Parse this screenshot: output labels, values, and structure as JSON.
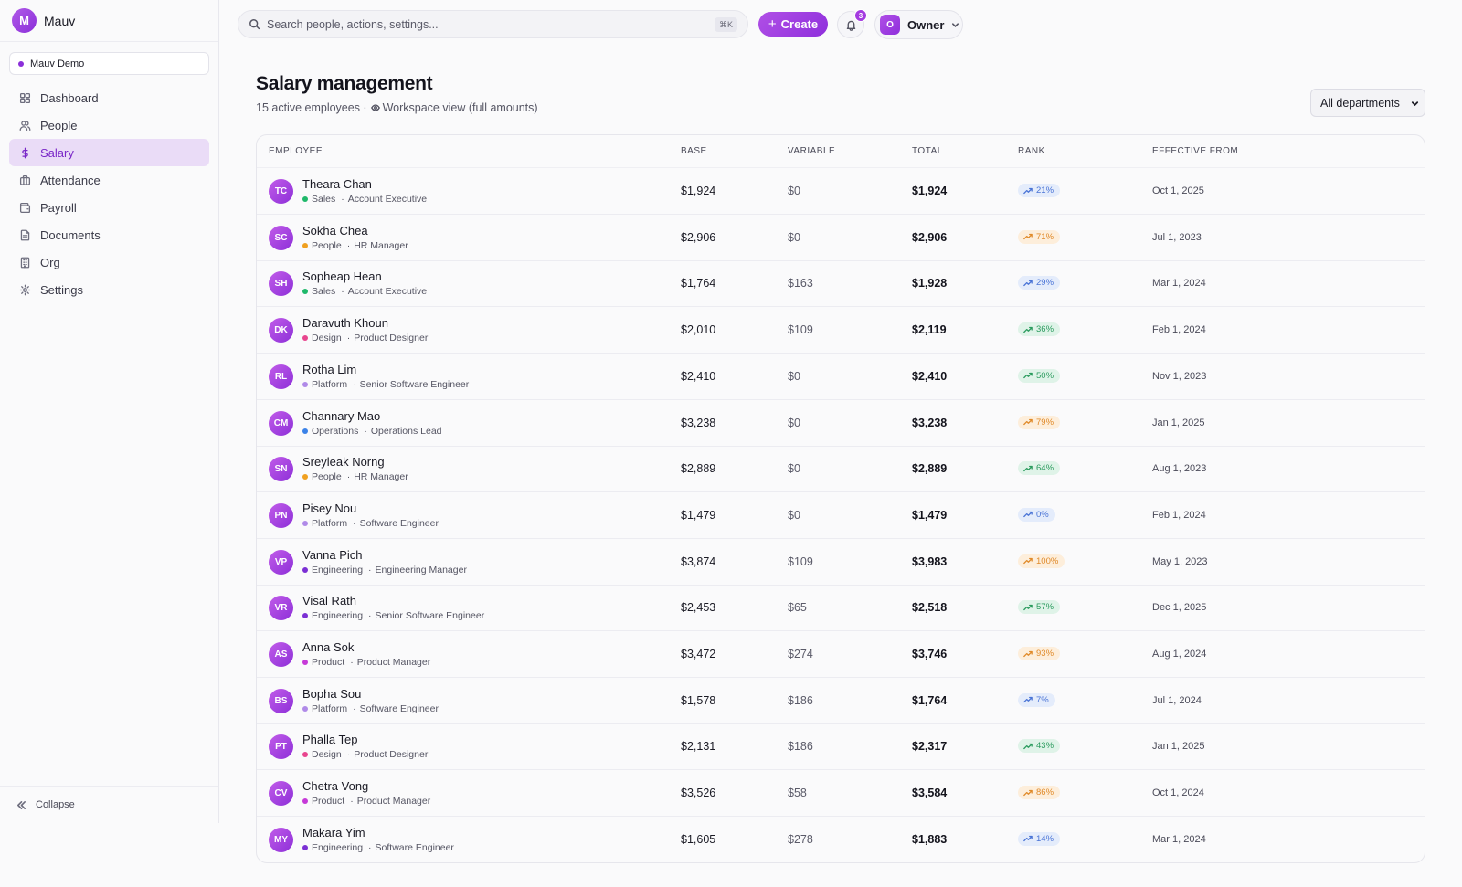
{
  "brand": {
    "logo_letter": "M",
    "name": "Mauv"
  },
  "workspace": {
    "name": "Mauv Demo"
  },
  "nav": [
    {
      "label": "Dashboard",
      "icon": "dashboard-icon"
    },
    {
      "label": "People",
      "icon": "people-icon"
    },
    {
      "label": "Salary",
      "icon": "dollar-icon",
      "active": true
    },
    {
      "label": "Attendance",
      "icon": "briefcase-icon"
    },
    {
      "label": "Payroll",
      "icon": "wallet-icon"
    },
    {
      "label": "Documents",
      "icon": "document-icon"
    },
    {
      "label": "Org",
      "icon": "building-icon"
    },
    {
      "label": "Settings",
      "icon": "gear-icon"
    }
  ],
  "collapse_label": "Collapse",
  "topbar": {
    "search_placeholder": "Search people, actions, settings...",
    "shortcut": "⌘K",
    "create_label": "Create",
    "notification_count": "3",
    "user_initial": "O",
    "user_name": "Owner"
  },
  "page": {
    "title": "Salary management",
    "subtitle_count": "15 active employees ·",
    "subtitle_view": "Workspace view (full amounts)",
    "department_filter": "All departments"
  },
  "table": {
    "columns": [
      "Employee",
      "Base",
      "Variable",
      "Total",
      "Rank",
      "Effective from"
    ],
    "rows": [
      {
        "initials": "TC",
        "name": "Theara Chan",
        "dept": "Sales",
        "dept_color": "#1fb86a",
        "role": "Account Executive",
        "base": "$1,924",
        "variable": "$0",
        "total": "$1,924",
        "rank": "21%",
        "rank_tone": "blue",
        "effective": "Oct 1, 2025"
      },
      {
        "initials": "SC",
        "name": "Sokha Chea",
        "dept": "People",
        "dept_color": "#f0a020",
        "role": "HR Manager",
        "base": "$2,906",
        "variable": "$0",
        "total": "$2,906",
        "rank": "71%",
        "rank_tone": "orange",
        "effective": "Jul 1, 2023"
      },
      {
        "initials": "SH",
        "name": "Sopheap Hean",
        "dept": "Sales",
        "dept_color": "#1fb86a",
        "role": "Account Executive",
        "base": "$1,764",
        "variable": "$163",
        "total": "$1,928",
        "rank": "29%",
        "rank_tone": "blue",
        "effective": "Mar 1, 2024"
      },
      {
        "initials": "DK",
        "name": "Daravuth Khoun",
        "dept": "Design",
        "dept_color": "#e8458e",
        "role": "Product Designer",
        "base": "$2,010",
        "variable": "$109",
        "total": "$2,119",
        "rank": "36%",
        "rank_tone": "green",
        "effective": "Feb 1, 2024"
      },
      {
        "initials": "RL",
        "name": "Rotha Lim",
        "dept": "Platform",
        "dept_color": "#b08ae8",
        "role": "Senior Software Engineer",
        "base": "$2,410",
        "variable": "$0",
        "total": "$2,410",
        "rank": "50%",
        "rank_tone": "green",
        "effective": "Nov 1, 2023"
      },
      {
        "initials": "CM",
        "name": "Channary Mao",
        "dept": "Operations",
        "dept_color": "#3b82e8",
        "role": "Operations Lead",
        "base": "$3,238",
        "variable": "$0",
        "total": "$3,238",
        "rank": "79%",
        "rank_tone": "orange",
        "effective": "Jan 1, 2025"
      },
      {
        "initials": "SN",
        "name": "Sreyleak Norng",
        "dept": "People",
        "dept_color": "#f0a020",
        "role": "HR Manager",
        "base": "$2,889",
        "variable": "$0",
        "total": "$2,889",
        "rank": "64%",
        "rank_tone": "green",
        "effective": "Aug 1, 2023"
      },
      {
        "initials": "PN",
        "name": "Pisey Nou",
        "dept": "Platform",
        "dept_color": "#b08ae8",
        "role": "Software Engineer",
        "base": "$1,479",
        "variable": "$0",
        "total": "$1,479",
        "rank": "0%",
        "rank_tone": "blue",
        "effective": "Feb 1, 2024"
      },
      {
        "initials": "VP",
        "name": "Vanna Pich",
        "dept": "Engineering",
        "dept_color": "#7b2fd4",
        "role": "Engineering Manager",
        "base": "$3,874",
        "variable": "$109",
        "total": "$3,983",
        "rank": "100%",
        "rank_tone": "orange",
        "effective": "May 1, 2023"
      },
      {
        "initials": "VR",
        "name": "Visal Rath",
        "dept": "Engineering",
        "dept_color": "#7b2fd4",
        "role": "Senior Software Engineer",
        "base": "$2,453",
        "variable": "$65",
        "total": "$2,518",
        "rank": "57%",
        "rank_tone": "green",
        "effective": "Dec 1, 2025"
      },
      {
        "initials": "AS",
        "name": "Anna Sok",
        "dept": "Product",
        "dept_color": "#c63ad8",
        "role": "Product Manager",
        "base": "$3,472",
        "variable": "$274",
        "total": "$3,746",
        "rank": "93%",
        "rank_tone": "orange",
        "effective": "Aug 1, 2024"
      },
      {
        "initials": "BS",
        "name": "Bopha Sou",
        "dept": "Platform",
        "dept_color": "#b08ae8",
        "role": "Software Engineer",
        "base": "$1,578",
        "variable": "$186",
        "total": "$1,764",
        "rank": "7%",
        "rank_tone": "blue",
        "effective": "Jul 1, 2024"
      },
      {
        "initials": "PT",
        "name": "Phalla Tep",
        "dept": "Design",
        "dept_color": "#e8458e",
        "role": "Product Designer",
        "base": "$2,131",
        "variable": "$186",
        "total": "$2,317",
        "rank": "43%",
        "rank_tone": "green",
        "effective": "Jan 1, 2025"
      },
      {
        "initials": "CV",
        "name": "Chetra Vong",
        "dept": "Product",
        "dept_color": "#c63ad8",
        "role": "Product Manager",
        "base": "$3,526",
        "variable": "$58",
        "total": "$3,584",
        "rank": "86%",
        "rank_tone": "orange",
        "effective": "Oct 1, 2024"
      },
      {
        "initials": "MY",
        "name": "Makara Yim",
        "dept": "Engineering",
        "dept_color": "#7b2fd4",
        "role": "Software Engineer",
        "base": "$1,605",
        "variable": "$278",
        "total": "$1,883",
        "rank": "14%",
        "rank_tone": "blue",
        "effective": "Mar 1, 2024"
      }
    ]
  }
}
